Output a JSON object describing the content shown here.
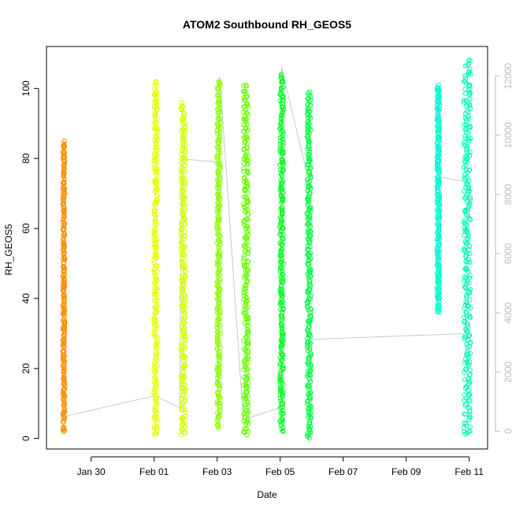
{
  "chart_data": {
    "type": "scatter",
    "title": "ATOM2 Southbound RH_GEOS5",
    "xlabel": "Date",
    "ylabel": "RH_GEOS5",
    "x_tick_labels": [
      "Jan 30",
      "Feb 01",
      "Feb 03",
      "Feb 05",
      "Feb 07",
      "Feb 09",
      "Feb 11"
    ],
    "x_ticks": [
      "2017-01-30",
      "2017-02-01",
      "2017-02-03",
      "2017-02-05",
      "2017-02-07",
      "2017-02-09",
      "2017-02-11"
    ],
    "xlim": [
      "2017-01-28T14:00",
      "2017-02-11T14:00"
    ],
    "ylim": [
      -3,
      112
    ],
    "y_ticks": [
      0,
      20,
      40,
      60,
      80,
      100
    ],
    "y2_ticks": [
      0,
      2000,
      4000,
      6000,
      8000,
      10000,
      12000
    ],
    "y2lim": [
      -600,
      13000
    ],
    "y2_axis_color": "#bdbdbd",
    "marker": "open-circle",
    "grid": false,
    "series": [
      {
        "x_start": "2017-01-29T02:30",
        "x_end": "2017-01-29T04:00",
        "y_min": 2,
        "y_max": 85,
        "color": "#ff8c00"
      },
      {
        "x_start": "2017-01-31T23:50",
        "x_end": "2017-02-01T02:30",
        "y_min": 1,
        "y_max": 102,
        "color": "#e6ff00"
      },
      {
        "x_start": "2017-02-01T20:30",
        "x_end": "2017-02-01T23:50",
        "y_min": 1,
        "y_max": 96,
        "color": "#d4ff00"
      },
      {
        "x_start": "2017-02-02T23:50",
        "x_end": "2017-02-03T02:30",
        "y_min": 3,
        "y_max": 102,
        "color": "#8cff00"
      },
      {
        "x_start": "2017-02-03T20:00",
        "x_end": "2017-02-03T23:50",
        "y_min": 1,
        "y_max": 101,
        "color": "#66ff00"
      },
      {
        "x_start": "2017-02-04T23:50",
        "x_end": "2017-02-05T02:30",
        "y_min": 2,
        "y_max": 104,
        "color": "#00ff20"
      },
      {
        "x_start": "2017-02-05T20:30",
        "x_end": "2017-02-05T23:30",
        "y_min": 0,
        "y_max": 99,
        "color": "#00ff40"
      },
      {
        "x_start": "2017-02-09T23:30",
        "x_end": "2017-02-10T01:30",
        "y_min": 36,
        "y_max": 101,
        "color": "#00ffcc"
      },
      {
        "x_start": "2017-02-10T20:00",
        "x_end": "2017-02-11T01:00",
        "y_min": 1,
        "y_max": 108,
        "color": "#00ffb4"
      }
    ],
    "secondary_line": {
      "color": "#c8c8c8",
      "axis": "right",
      "points": [
        [
          "2017-01-29T03:30",
          500
        ],
        [
          "2017-02-01T00:30",
          1200
        ],
        [
          "2017-02-01T19:30",
          800
        ],
        [
          "2017-02-01T21:00",
          9200
        ],
        [
          "2017-02-02T23:50",
          9100
        ],
        [
          "2017-02-03T00:30",
          400
        ],
        [
          "2017-02-03T02:00",
          12000
        ],
        [
          "2017-02-03T20:00",
          350
        ],
        [
          "2017-02-03T22:00",
          3100
        ],
        [
          "2017-02-04T00:00",
          450
        ],
        [
          "2017-02-05T00:10",
          800
        ],
        [
          "2017-02-05T01:00",
          12300
        ],
        [
          "2017-02-05T20:00",
          8800
        ],
        [
          "2017-02-05T21:00",
          3100
        ],
        [
          "2017-02-10T20:30",
          3300
        ],
        [
          "2017-02-11T00:30",
          8400
        ],
        [
          "2017-02-09T23:50",
          8600
        ]
      ]
    }
  }
}
